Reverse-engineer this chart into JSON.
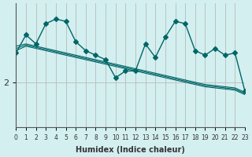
{
  "xlabel": "Humidex (Indice chaleur)",
  "ylabel": "",
  "background_color": "#d4eff0",
  "grid_color": "#c0c0c0",
  "line_color": "#006666",
  "xlim": [
    0,
    23
  ],
  "ylim": [
    0,
    5.5
  ],
  "yticks": [
    2
  ],
  "xticks": [
    0,
    1,
    2,
    3,
    4,
    5,
    6,
    7,
    8,
    9,
    10,
    11,
    12,
    13,
    14,
    15,
    16,
    17,
    18,
    19,
    20,
    21,
    22,
    23
  ],
  "series1_x": [
    0,
    1,
    2,
    3,
    4,
    5,
    6,
    7,
    8,
    9,
    10,
    11,
    12,
    13,
    14,
    15,
    16,
    17,
    18,
    19,
    20,
    21,
    22,
    23
  ],
  "series1_y": [
    3.3,
    4.1,
    3.7,
    4.6,
    4.8,
    4.7,
    3.8,
    3.4,
    3.2,
    3.0,
    2.2,
    2.5,
    2.5,
    3.7,
    3.1,
    4.0,
    4.7,
    4.6,
    3.4,
    3.2,
    3.5,
    3.2,
    3.3,
    1.6
  ],
  "series2_x": [
    0,
    1,
    2,
    3,
    4,
    5,
    6,
    7,
    8,
    9,
    10,
    11,
    12,
    13,
    14,
    15,
    16,
    17,
    18,
    19,
    20,
    21,
    22,
    23
  ],
  "series2_y": [
    3.6,
    3.7,
    3.6,
    3.5,
    3.4,
    3.3,
    3.2,
    3.1,
    3.0,
    2.9,
    2.8,
    2.7,
    2.6,
    2.5,
    2.4,
    2.3,
    2.2,
    2.1,
    2.0,
    1.9,
    1.85,
    1.8,
    1.75,
    1.55
  ],
  "series3_x": [
    0,
    1,
    2,
    3,
    4,
    5,
    6,
    7,
    8,
    9,
    10,
    11,
    12,
    13,
    14,
    15,
    16,
    17,
    18,
    19,
    20,
    21,
    22,
    23
  ],
  "series3_y": [
    3.5,
    3.65,
    3.55,
    3.45,
    3.35,
    3.25,
    3.15,
    3.05,
    2.95,
    2.85,
    2.75,
    2.65,
    2.55,
    2.45,
    2.35,
    2.25,
    2.15,
    2.05,
    1.95,
    1.85,
    1.8,
    1.75,
    1.7,
    1.5
  ],
  "series4_x": [
    0,
    1,
    2,
    3,
    4,
    5,
    6,
    7,
    8,
    9,
    10,
    11,
    12,
    13,
    14,
    15,
    16,
    17,
    18,
    19,
    20,
    21,
    22,
    23
  ],
  "series4_y": [
    3.4,
    3.6,
    3.5,
    3.4,
    3.3,
    3.2,
    3.1,
    3.0,
    2.9,
    2.8,
    2.7,
    2.6,
    2.5,
    2.4,
    2.3,
    2.2,
    2.1,
    2.0,
    1.9,
    1.8,
    1.75,
    1.7,
    1.65,
    1.45
  ]
}
